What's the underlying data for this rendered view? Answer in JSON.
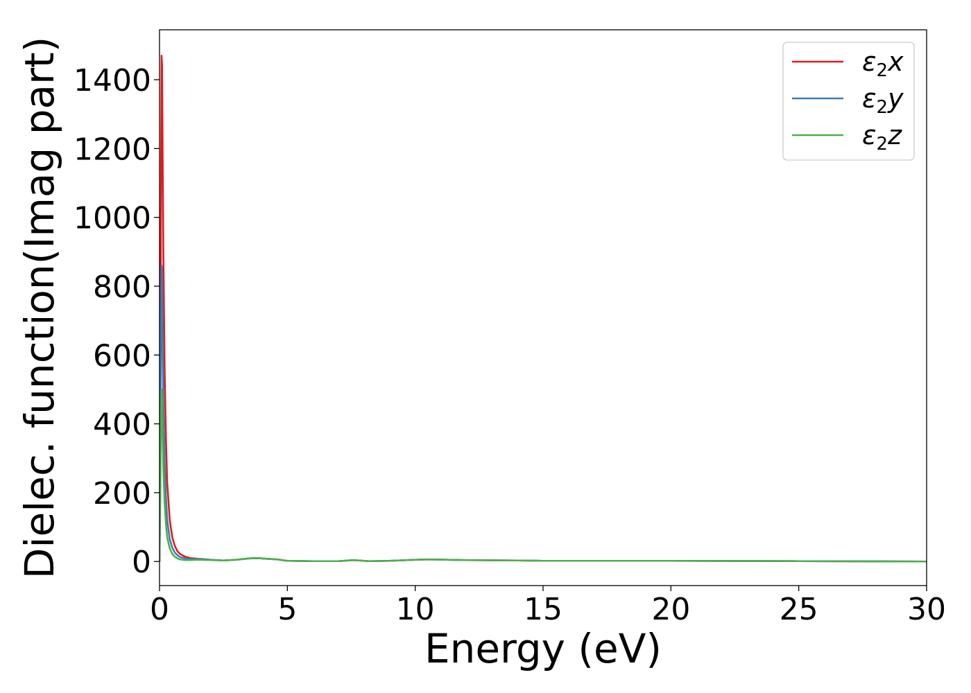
{
  "chart_data": {
    "type": "line",
    "title": "",
    "xlabel": "Energy (eV)",
    "ylabel": "Dielec. function(Imag part)",
    "xlim": [
      0,
      30
    ],
    "ylim": [
      -70,
      1545
    ],
    "xticks": [
      0,
      5,
      10,
      15,
      20,
      25,
      30
    ],
    "xtick_labels": [
      "0",
      "5",
      "10",
      "15",
      "20",
      "25",
      "30"
    ],
    "yticks": [
      0,
      200,
      400,
      600,
      800,
      1000,
      1200,
      1400
    ],
    "ytick_labels": [
      "0",
      "200",
      "400",
      "600",
      "800",
      "1000",
      "1200",
      "1400"
    ],
    "grid": false,
    "legend_position": "top-right",
    "series": [
      {
        "name": "ε2x",
        "legend_main": "ε",
        "legend_sub": "2",
        "legend_var": "x",
        "color": "#e41a1c",
        "x": [
          0,
          0.03,
          0.06,
          0.08,
          0.1,
          0.12,
          0.15,
          0.2,
          0.25,
          0.3,
          0.4,
          0.5,
          0.6,
          0.7,
          0.8,
          1.0,
          1.2,
          1.5,
          2.0,
          2.5,
          3.0,
          3.5,
          3.8,
          4.2,
          4.6,
          5.0,
          6.0,
          7.0,
          7.6,
          8.2,
          9.0,
          10.0,
          10.5,
          12.0,
          14.0,
          15.0,
          20.0,
          25.0,
          30.0
        ],
        "y": [
          0,
          380,
          1150,
          1470,
          1440,
          1200,
          900,
          560,
          360,
          230,
          120,
          70,
          45,
          30,
          22,
          14,
          10,
          8,
          5,
          3,
          5,
          9,
          10,
          8,
          6,
          2,
          1,
          1,
          4,
          1,
          2,
          5,
          6,
          4,
          3,
          2,
          2,
          1,
          0
        ]
      },
      {
        "name": "ε2y",
        "legend_main": "ε",
        "legend_sub": "2",
        "legend_var": "y",
        "color": "#377eb8",
        "x": [
          0,
          0.03,
          0.06,
          0.08,
          0.1,
          0.12,
          0.15,
          0.2,
          0.25,
          0.3,
          0.4,
          0.5,
          0.6,
          0.7,
          0.8,
          1.0,
          1.2,
          1.5,
          2.0,
          2.5,
          3.0,
          3.5,
          3.8,
          4.2,
          4.6,
          5.0,
          6.0,
          7.0,
          7.6,
          8.2,
          9.0,
          10.0,
          10.5,
          12.0,
          14.0,
          15.0,
          20.0,
          25.0,
          30.0
        ],
        "y": [
          0,
          250,
          700,
          860,
          820,
          640,
          460,
          290,
          190,
          120,
          65,
          40,
          26,
          18,
          13,
          9,
          7,
          7,
          5,
          3,
          5,
          9,
          10,
          8,
          6,
          2,
          1,
          1,
          4,
          1,
          2,
          5,
          6,
          4,
          3,
          2,
          2,
          1,
          0
        ]
      },
      {
        "name": "ε2z",
        "legend_main": "ε",
        "legend_sub": "2",
        "legend_var": "z",
        "color": "#4daf4a",
        "x": [
          0,
          0.03,
          0.06,
          0.08,
          0.1,
          0.12,
          0.15,
          0.2,
          0.25,
          0.3,
          0.4,
          0.5,
          0.6,
          0.7,
          0.8,
          1.0,
          1.2,
          1.5,
          2.0,
          2.5,
          3.0,
          3.5,
          3.8,
          4.2,
          4.6,
          5.0,
          6.0,
          7.0,
          7.6,
          8.2,
          9.0,
          10.0,
          10.5,
          12.0,
          14.0,
          15.0,
          20.0,
          25.0,
          30.0
        ],
        "y": [
          0,
          180,
          420,
          500,
          480,
          380,
          270,
          170,
          110,
          70,
          38,
          22,
          14,
          9,
          6,
          4,
          4,
          5,
          4,
          3,
          5,
          9,
          10,
          8,
          6,
          2,
          1,
          1,
          4,
          1,
          2,
          5,
          6,
          4,
          3,
          2,
          2,
          1,
          0
        ]
      }
    ]
  }
}
